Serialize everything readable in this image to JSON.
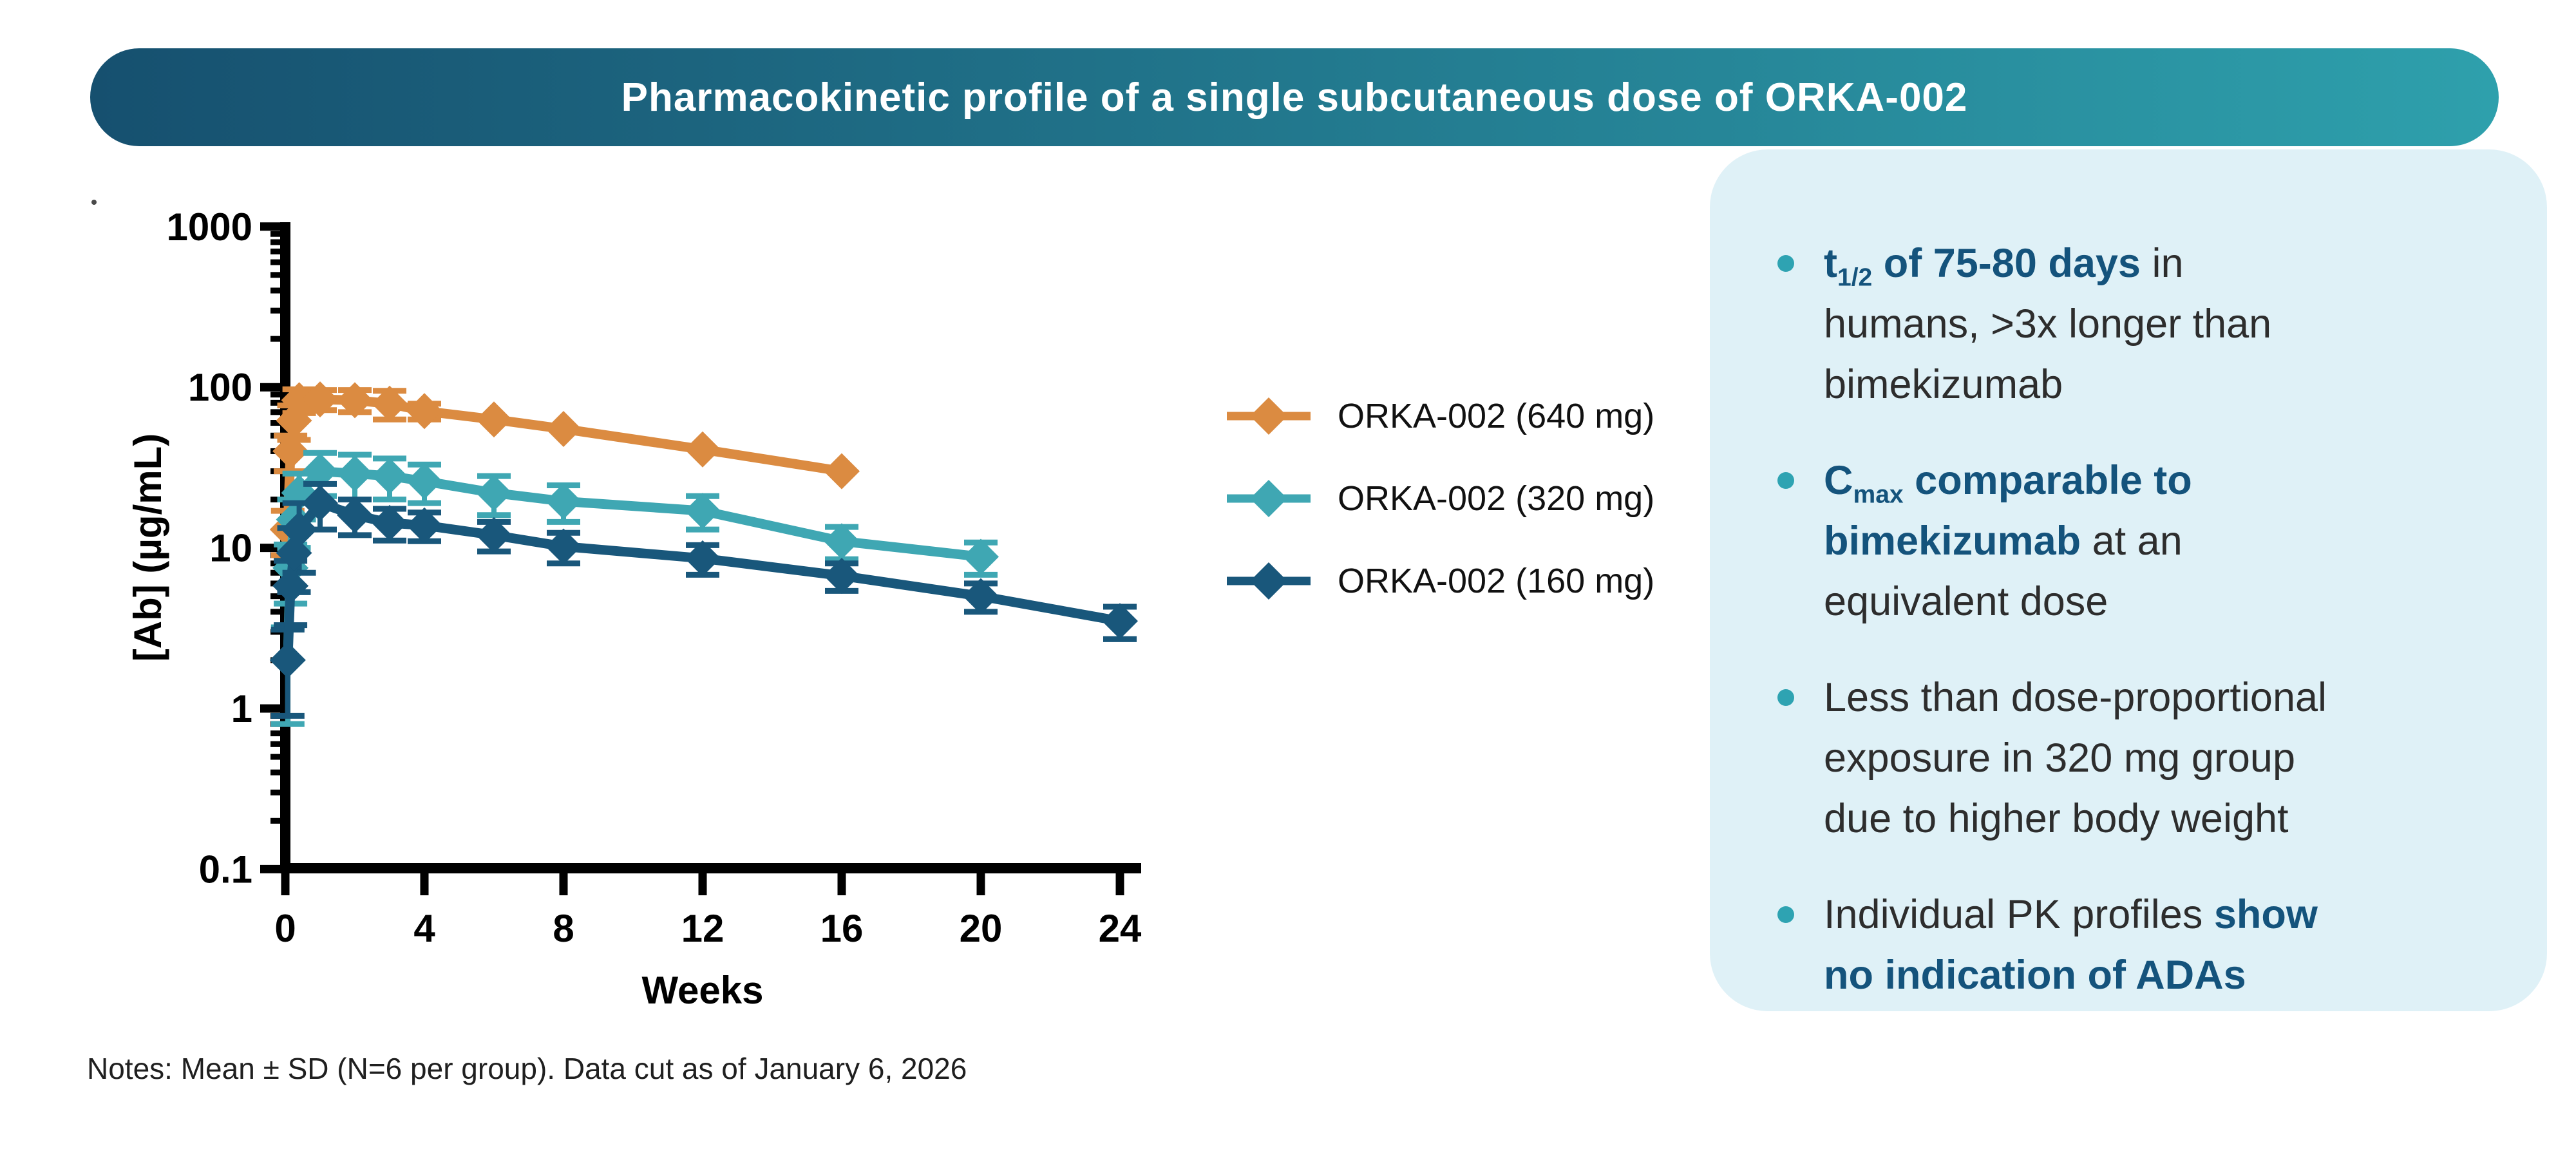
{
  "title_bar": {
    "text": "Pharmacokinetic profile of a single subcutaneous dose of ORKA-002",
    "gradient_left": "#16506F",
    "gradient_right": "#2EA0AC"
  },
  "chart_data": {
    "type": "line",
    "title": "",
    "xlabel": "Weeks",
    "ylabel": "[Ab] (µg/mL)",
    "y_scale": "log",
    "xlim": [
      0,
      24.6
    ],
    "ylim": [
      0.1,
      1000
    ],
    "x_ticks": [
      0,
      4,
      8,
      12,
      16,
      20,
      24
    ],
    "x_tick_labels": [
      "0",
      "4",
      "8",
      "12",
      "16",
      "20",
      "24"
    ],
    "y_ticks": [
      1000,
      100,
      10,
      1,
      0.1
    ],
    "y_tick_labels": [
      "1000",
      "100",
      "10",
      "1",
      "0.1"
    ],
    "grid": false,
    "legend_position": "right-of-plot",
    "error_bars": "mean ± SD",
    "series": [
      {
        "name": "ORKA-002 (640 mg)",
        "color": "#DB8B41",
        "x": [
          0.07,
          0.15,
          0.25,
          0.4,
          1,
          2,
          3,
          4,
          6,
          8,
          12,
          16
        ],
        "y": [
          13,
          40,
          62,
          83,
          84,
          83,
          79,
          71,
          63,
          55,
          41,
          30
        ],
        "sd": [
          4,
          10,
          15,
          14,
          12,
          13,
          16,
          8,
          0,
          0,
          0,
          0
        ]
      },
      {
        "name": "ORKA-002 (320 mg)",
        "color": "#3FA7B3",
        "x": [
          0.07,
          0.15,
          0.25,
          0.4,
          1,
          2,
          3,
          4,
          6,
          8,
          12,
          16,
          20
        ],
        "y": [
          2,
          7.5,
          15,
          22,
          30,
          29,
          28,
          26,
          22,
          19.5,
          17,
          11,
          8.8
        ],
        "sd": [
          1.2,
          3,
          5,
          7,
          9,
          9,
          8,
          7,
          6,
          5,
          4,
          2.5,
          2
        ]
      },
      {
        "name": "ORKA-002 (160 mg)",
        "color": "#19577B",
        "x": [
          0.07,
          0.15,
          0.25,
          0.4,
          1,
          2,
          3,
          4,
          6,
          8,
          12,
          16,
          20,
          24
        ],
        "y": [
          2,
          5.8,
          9.3,
          13,
          19,
          16,
          14.3,
          13.8,
          12,
          10.2,
          8.6,
          6.7,
          5,
          3.5
        ],
        "sd": [
          1.1,
          2.5,
          4,
          6,
          6,
          4,
          3.2,
          2.8,
          2.5,
          2.2,
          1.8,
          1.3,
          1,
          0.8
        ]
      }
    ]
  },
  "callout": {
    "bg_color": "#DFF1F7",
    "bullet_color": "#2EA3B2",
    "accent_text_color": "#14537C",
    "bullets": [
      [
        {
          "text": "t",
          "bold": true
        },
        {
          "text": "1/2",
          "bold": true,
          "sub": true
        },
        {
          "text": " of 75-80 days",
          "bold": true
        },
        {
          "text": " in",
          "bold": false
        },
        {
          "br": true
        },
        {
          "text": "humans, >3x longer than",
          "bold": false
        },
        {
          "br": true
        },
        {
          "text": "bimekizumab",
          "bold": false
        }
      ],
      [
        {
          "text": "C",
          "bold": true
        },
        {
          "text": "max",
          "bold": true,
          "sub": true
        },
        {
          "text": " comparable to",
          "bold": true
        },
        {
          "br": true
        },
        {
          "text": "bimekizumab",
          "bold": true
        },
        {
          "text": " at an",
          "bold": false
        },
        {
          "br": true
        },
        {
          "text": "equivalent dose",
          "bold": false
        }
      ],
      [
        {
          "text": "Less than dose-proportional",
          "bold": false
        },
        {
          "br": true
        },
        {
          "text": "exposure in 320 mg group",
          "bold": false
        },
        {
          "br": true
        },
        {
          "text": "due to higher body weight",
          "bold": false
        }
      ],
      [
        {
          "text": "Individual PK profiles ",
          "bold": false
        },
        {
          "text": "show",
          "bold": true
        },
        {
          "br": true
        },
        {
          "text": "no indication of ADAs",
          "bold": true
        }
      ]
    ]
  },
  "notes": {
    "text": "Notes: Mean ± SD (N=6 per group). Data cut as of January 6, 2026"
  }
}
